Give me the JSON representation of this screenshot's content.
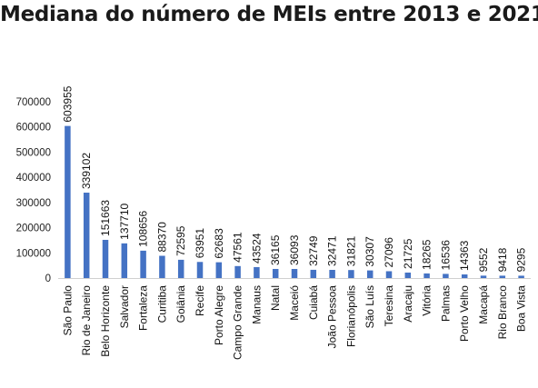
{
  "chart_data": {
    "type": "bar",
    "title": "Mediana do número de MEIs entre 2013 e 2021",
    "xlabel": "",
    "ylabel": "",
    "ylim": [
      0,
      700000
    ],
    "yticks": [
      0,
      100000,
      200000,
      300000,
      400000,
      500000,
      600000,
      700000
    ],
    "grid": false,
    "bar_color": "#4472c4",
    "categories": [
      "São Paulo",
      "Rio de Janeiro",
      "Belo Horizonte",
      "Salvador",
      "Fortaleza",
      "Curitiba",
      "Goiânia",
      "Recife",
      "Porto Alegre",
      "Campo Grande",
      "Manaus",
      "Natal",
      "Maceió",
      "Cuiabá",
      "João Pessoa",
      "Florianópolis",
      "São Luís",
      "Teresina",
      "Aracaju",
      "Vitória",
      "Palmas",
      "Porto Velho",
      "Macapá",
      "Rio Branco",
      "Boa Vista"
    ],
    "values": [
      603955,
      339102,
      151663,
      137710,
      108656,
      88370,
      72595,
      63951,
      62683,
      47561,
      43524,
      36165,
      36093,
      32749,
      32471,
      31821,
      30307,
      27096,
      21725,
      18265,
      16536,
      14363,
      9552,
      9418,
      9295
    ]
  }
}
